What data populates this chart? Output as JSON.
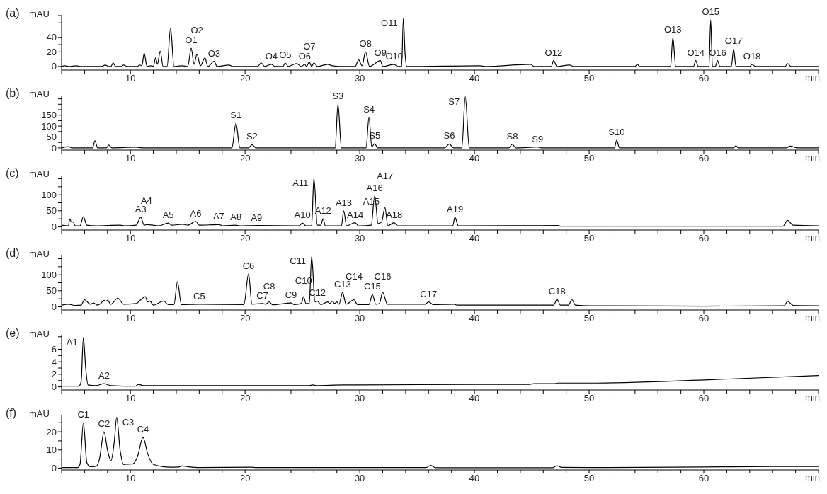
{
  "chart_data": [
    {
      "type": "line",
      "title": "(a)",
      "ylabel": "mAU",
      "xlabel": "min",
      "xlim": [
        4,
        70
      ],
      "ylim": [
        -5,
        70
      ],
      "xticks": [
        {
          "value": 4,
          "label": null
        },
        {
          "value": 6,
          "label": null
        },
        {
          "value": 8,
          "label": null
        },
        10,
        {
          "value": 12,
          "label": null
        },
        {
          "value": 14,
          "label": null
        },
        {
          "value": 16,
          "label": null
        },
        {
          "value": 18,
          "label": null
        },
        20,
        {
          "value": 22,
          "label": null
        },
        {
          "value": 24,
          "label": null
        },
        {
          "value": 26,
          "label": null
        },
        {
          "value": 28,
          "label": null
        },
        30,
        {
          "value": 32,
          "label": null
        },
        {
          "value": 34,
          "label": null
        },
        {
          "value": 36,
          "label": null
        },
        {
          "value": 38,
          "label": null
        },
        40,
        {
          "value": 42,
          "label": null
        },
        {
          "value": 44,
          "label": null
        },
        {
          "value": 46,
          "label": null
        },
        {
          "value": 48,
          "label": null
        },
        50,
        {
          "value": 52,
          "label": null
        },
        {
          "value": 54,
          "label": null
        },
        {
          "value": 56,
          "label": null
        },
        {
          "value": 58,
          "label": null
        },
        60,
        {
          "value": 62,
          "label": null
        },
        {
          "value": 64,
          "label": null
        },
        {
          "value": 66,
          "label": null
        },
        {
          "value": 68,
          "label": null
        },
        {
          "value": 70,
          "label": null
        }
      ],
      "yticks": [
        0,
        {
          "value": 10,
          "label": null
        },
        20,
        {
          "value": 30,
          "label": null
        },
        40,
        {
          "value": 50,
          "label": null
        },
        {
          "value": 60,
          "label": null
        },
        {
          "value": 70,
          "label": null
        }
      ],
      "x": [
        4,
        4.3,
        4.6,
        5.3,
        5.6,
        7.5,
        7.8,
        8.1,
        8.3,
        8.5,
        8.7,
        9.2,
        9.4,
        9.7,
        10.6,
        10.8,
        11.0,
        11.2,
        11.45,
        11.8,
        12.0,
        12.2,
        12.35,
        12.6,
        12.85,
        13.2,
        13.5,
        13.8,
        14.5,
        15.0,
        15.3,
        15.55,
        15.8,
        16.1,
        16.5,
        16.75,
        17.3,
        17.55,
        18.6,
        18.9,
        21.1,
        21.4,
        21.7,
        22.3,
        22.6,
        23.3,
        23.5,
        23.75,
        24.5,
        24.9,
        25.2,
        25.35,
        25.6,
        25.8,
        26.0,
        26.3,
        27.2,
        27.6,
        28.3,
        29.6,
        29.9,
        30.2,
        30.5,
        30.85,
        31.8,
        32.0,
        33.0,
        33.3,
        33.65,
        33.8,
        33.95,
        34.1,
        40.5,
        40.9,
        44.9,
        45.2,
        46.7,
        46.9,
        47.2,
        48.3,
        48.6,
        54.0,
        54.2,
        54.4,
        57.1,
        57.3,
        57.55,
        59.1,
        59.3,
        59.5,
        60.45,
        60.6,
        60.75,
        61.0,
        61.2,
        61.4,
        62.4,
        62.6,
        62.8,
        64.0,
        64.2,
        64.5,
        67.1,
        67.3,
        67.6,
        70
      ],
      "series": [
        {
          "color": "#000000",
          "values": [
            0,
            1,
            0,
            1,
            0,
            0,
            2,
            0,
            0,
            5,
            0,
            0,
            2,
            0,
            0,
            2,
            1,
            18,
            0,
            1,
            0,
            12,
            3,
            21,
            0,
            0,
            53,
            0,
            1,
            0,
            25,
            3,
            17,
            1,
            12,
            0,
            7,
            0,
            2,
            0,
            0,
            5,
            0,
            3,
            0,
            0,
            5,
            0,
            4,
            0,
            3,
            0,
            6,
            0,
            5,
            0,
            3,
            1,
            0,
            0,
            9,
            1,
            20,
            0,
            8,
            0,
            3,
            0,
            0,
            66,
            18,
            0,
            1,
            0,
            3,
            0,
            0,
            8,
            0,
            2,
            0,
            0,
            3,
            0,
            0,
            40,
            0,
            0,
            8,
            0,
            0,
            64,
            0,
            0,
            8,
            0,
            0,
            24,
            0,
            0,
            3,
            0,
            0,
            4,
            0,
            0
          ]
        }
      ],
      "annotations": [
        {
          "text": "O1",
          "x": 15.3,
          "y": 25
        },
        {
          "text": "O2",
          "x": 15.8,
          "y": 17
        },
        {
          "text": "O3",
          "x": 17.3,
          "y": 7
        },
        {
          "text": "O4",
          "x": 22.3,
          "y": 3
        },
        {
          "text": "O5",
          "x": 23.5,
          "y": 5
        },
        {
          "text": "O6",
          "x": 25.2,
          "y": 3
        },
        {
          "text": "O7",
          "x": 25.6,
          "y": 6
        },
        {
          "text": "O8",
          "x": 30.5,
          "y": 20
        },
        {
          "text": "O9",
          "x": 31.8,
          "y": 8
        },
        {
          "text": "O10",
          "x": 33.0,
          "y": 3
        },
        {
          "text": "O11",
          "x": 33.8,
          "y": 66
        },
        {
          "text": "O12",
          "x": 46.9,
          "y": 8
        },
        {
          "text": "O13",
          "x": 57.3,
          "y": 40
        },
        {
          "text": "O14",
          "x": 59.3,
          "y": 8
        },
        {
          "text": "O15",
          "x": 60.6,
          "y": 64
        },
        {
          "text": "O16",
          "x": 61.2,
          "y": 8
        },
        {
          "text": "O17",
          "x": 62.6,
          "y": 24
        },
        {
          "text": "O18",
          "x": 64.2,
          "y": 3
        }
      ]
    },
    {
      "type": "line",
      "title": "(b)",
      "ylabel": "mAU",
      "xlabel": "min",
      "xlim": [
        4,
        70
      ],
      "ylim": [
        -10,
        240
      ],
      "xticks": [
        {
          "value": 4,
          "label": null
        },
        {
          "value": 6,
          "label": null
        },
        {
          "value": 8,
          "label": null
        },
        10,
        {
          "value": 12,
          "label": null
        },
        {
          "value": 14,
          "label": null
        },
        {
          "value": 16,
          "label": null
        },
        {
          "value": 18,
          "label": null
        },
        20,
        {
          "value": 22,
          "label": null
        },
        {
          "value": 24,
          "label": null
        },
        {
          "value": 26,
          "label": null
        },
        {
          "value": 28,
          "label": null
        },
        30,
        {
          "value": 32,
          "label": null
        },
        {
          "value": 34,
          "label": null
        },
        {
          "value": 36,
          "label": null
        },
        {
          "value": 38,
          "label": null
        },
        40,
        {
          "value": 42,
          "label": null
        },
        {
          "value": 44,
          "label": null
        },
        {
          "value": 46,
          "label": null
        },
        {
          "value": 48,
          "label": null
        },
        50,
        {
          "value": 52,
          "label": null
        },
        {
          "value": 54,
          "label": null
        },
        {
          "value": 56,
          "label": null
        },
        {
          "value": 58,
          "label": null
        },
        60,
        {
          "value": 62,
          "label": null
        },
        {
          "value": 64,
          "label": null
        },
        {
          "value": 66,
          "label": null
        },
        {
          "value": 68,
          "label": null
        },
        {
          "value": 70,
          "label": null
        }
      ],
      "yticks": [
        0,
        {
          "value": 25,
          "label": null
        },
        50,
        {
          "value": 75,
          "label": null
        },
        100,
        {
          "value": 125,
          "label": null
        },
        150,
        {
          "value": 175,
          "label": null
        },
        {
          "value": 200,
          "label": null
        },
        {
          "value": 225,
          "label": null
        }
      ],
      "x": [
        4,
        4.6,
        4.9,
        6.7,
        6.9,
        7.15,
        7.9,
        8.1,
        8.4,
        10.5,
        11,
        18.85,
        19.2,
        19.55,
        20.3,
        20.6,
        20.95,
        27.85,
        28.1,
        28.4,
        30.55,
        30.8,
        31.05,
        31.3,
        31.55,
        37.4,
        37.8,
        38.2,
        38.9,
        39.2,
        39.55,
        43.0,
        43.3,
        43.6,
        45.5,
        45.8,
        52.2,
        52.4,
        52.65,
        62.6,
        62.8,
        63.0,
        67.2,
        67.5,
        68.2,
        70
      ],
      "series": [
        {
          "color": "#000000",
          "values": [
            0,
            6,
            0,
            0,
            33,
            0,
            0,
            13,
            0,
            3,
            0,
            0,
            112,
            0,
            0,
            15,
            0,
            0,
            200,
            0,
            0,
            140,
            5,
            20,
            0,
            0,
            18,
            0,
            0,
            235,
            0,
            0,
            17,
            0,
            4,
            0,
            0,
            35,
            0,
            0,
            10,
            0,
            0,
            8,
            0,
            0
          ]
        }
      ],
      "annotations": [
        {
          "text": "S1",
          "x": 19.2,
          "y": 112
        },
        {
          "text": "S2",
          "x": 20.6,
          "y": 15
        },
        {
          "text": "S3",
          "x": 28.1,
          "y": 200
        },
        {
          "text": "S4",
          "x": 30.8,
          "y": 140
        },
        {
          "text": "S5",
          "x": 31.3,
          "y": 20
        },
        {
          "text": "S6",
          "x": 37.8,
          "y": 18
        },
        {
          "text": "S7",
          "x": 39.2,
          "y": 235
        },
        {
          "text": "S8",
          "x": 43.3,
          "y": 17
        },
        {
          "text": "S9",
          "x": 45.5,
          "y": 4
        },
        {
          "text": "S10",
          "x": 52.4,
          "y": 35
        }
      ]
    },
    {
      "type": "line",
      "title": "(c)",
      "ylabel": "mAU",
      "xlabel": "min",
      "xlim": [
        4,
        70
      ],
      "ylim": [
        -10,
        160
      ],
      "xticks": [
        {
          "value": 4,
          "label": null
        },
        {
          "value": 6,
          "label": null
        },
        {
          "value": 8,
          "label": null
        },
        10,
        {
          "value": 12,
          "label": null
        },
        {
          "value": 14,
          "label": null
        },
        {
          "value": 16,
          "label": null
        },
        {
          "value": 18,
          "label": null
        },
        20,
        {
          "value": 22,
          "label": null
        },
        {
          "value": 24,
          "label": null
        },
        {
          "value": 26,
          "label": null
        },
        {
          "value": 28,
          "label": null
        },
        30,
        {
          "value": 32,
          "label": null
        },
        {
          "value": 34,
          "label": null
        },
        {
          "value": 36,
          "label": null
        },
        {
          "value": 38,
          "label": null
        },
        40,
        {
          "value": 42,
          "label": null
        },
        {
          "value": 44,
          "label": null
        },
        {
          "value": 46,
          "label": null
        },
        {
          "value": 48,
          "label": null
        },
        50,
        {
          "value": 52,
          "label": null
        },
        {
          "value": 54,
          "label": null
        },
        {
          "value": 56,
          "label": null
        },
        {
          "value": 58,
          "label": null
        },
        60,
        {
          "value": 62,
          "label": null
        },
        {
          "value": 64,
          "label": null
        },
        {
          "value": 66,
          "label": null
        },
        {
          "value": 68,
          "label": null
        },
        {
          "value": 70,
          "label": null
        }
      ],
      "yticks": [
        0,
        {
          "value": 25,
          "label": null
        },
        50,
        {
          "value": 75,
          "label": null
        },
        100,
        {
          "value": 125,
          "label": null
        },
        {
          "value": 150,
          "label": null
        }
      ],
      "x": [
        4,
        4.6,
        4.7,
        4.85,
        5.0,
        5.2,
        5.6,
        5.9,
        6.2,
        7,
        9.1,
        9.5,
        10.5,
        10.9,
        11.2,
        11.4,
        12.5,
        13.3,
        13.6,
        14.6,
        15.0,
        15.7,
        16.0,
        17.7,
        18.1,
        19.2,
        19.5,
        21.0,
        24.7,
        25.0,
        25.3,
        25.8,
        26.0,
        26.3,
        26.6,
        26.8,
        27.0,
        28.4,
        28.6,
        28.85,
        29.6,
        29.9,
        31.0,
        31.3,
        31.6,
        31.9,
        32.2,
        32.45,
        33.0,
        33.3,
        38.1,
        38.3,
        38.6,
        47.3,
        47.5,
        66.9,
        67.3,
        67.8,
        70
      ],
      "series": [
        {
          "color": "#000000",
          "values": [
            5,
            3,
            25,
            15,
            15,
            3,
            3,
            32,
            5,
            3,
            5,
            3,
            5,
            30,
            5,
            7,
            3,
            12,
            5,
            8,
            5,
            17,
            5,
            7,
            3,
            5,
            3,
            4,
            3,
            12,
            3,
            3,
            152,
            5,
            5,
            25,
            3,
            3,
            50,
            3,
            13,
            3,
            5,
            97,
            10,
            15,
            60,
            3,
            13,
            3,
            3,
            30,
            3,
            4,
            2,
            2,
            20,
            5,
            3
          ]
        }
      ],
      "annotations": [
        {
          "text": "A3",
          "x": 10.9,
          "y": 30
        },
        {
          "text": "A4",
          "x": 11.4,
          "y": 7
        },
        {
          "text": "A5",
          "x": 13.3,
          "y": 12
        },
        {
          "text": "A6",
          "x": 15.7,
          "y": 17
        },
        {
          "text": "A7",
          "x": 17.7,
          "y": 7
        },
        {
          "text": "A8",
          "x": 19.2,
          "y": 5
        },
        {
          "text": "A9",
          "x": 21.0,
          "y": 4
        },
        {
          "text": "A10",
          "x": 25.0,
          "y": 12
        },
        {
          "text": "A11",
          "x": 26.0,
          "y": 152
        },
        {
          "text": "A12",
          "x": 26.8,
          "y": 25
        },
        {
          "text": "A13",
          "x": 28.6,
          "y": 50
        },
        {
          "text": "A14",
          "x": 29.6,
          "y": 13
        },
        {
          "text": "A15",
          "x": 31.0,
          "y": 5
        },
        {
          "text": "A16",
          "x": 31.3,
          "y": 97
        },
        {
          "text": "A17",
          "x": 32.2,
          "y": 60
        },
        {
          "text": "A18",
          "x": 33.0,
          "y": 13
        },
        {
          "text": "A19",
          "x": 38.3,
          "y": 30
        }
      ]
    },
    {
      "type": "line",
      "title": "(d)",
      "ylabel": "mAU",
      "xlabel": "min",
      "xlim": [
        4,
        70
      ],
      "ylim": [
        -10,
        160
      ],
      "xticks": [
        {
          "value": 4,
          "label": null
        },
        {
          "value": 6,
          "label": null
        },
        {
          "value": 8,
          "label": null
        },
        10,
        {
          "value": 12,
          "label": null
        },
        {
          "value": 14,
          "label": null
        },
        {
          "value": 16,
          "label": null
        },
        {
          "value": 18,
          "label": null
        },
        20,
        {
          "value": 22,
          "label": null
        },
        {
          "value": 24,
          "label": null
        },
        {
          "value": 26,
          "label": null
        },
        {
          "value": 28,
          "label": null
        },
        30,
        {
          "value": 32,
          "label": null
        },
        {
          "value": 34,
          "label": null
        },
        {
          "value": 36,
          "label": null
        },
        {
          "value": 38,
          "label": null
        },
        40,
        {
          "value": 42,
          "label": null
        },
        {
          "value": 44,
          "label": null
        },
        {
          "value": 46,
          "label": null
        },
        {
          "value": 48,
          "label": null
        },
        50,
        {
          "value": 52,
          "label": null
        },
        {
          "value": 54,
          "label": null
        },
        {
          "value": 56,
          "label": null
        },
        {
          "value": 58,
          "label": null
        },
        60,
        {
          "value": 62,
          "label": null
        },
        {
          "value": 64,
          "label": null
        },
        {
          "value": 66,
          "label": null
        },
        {
          "value": 68,
          "label": null
        },
        {
          "value": 70,
          "label": null
        }
      ],
      "yticks": [
        0,
        {
          "value": 25,
          "label": null
        },
        50,
        {
          "value": 75,
          "label": null
        },
        100,
        {
          "value": 125,
          "label": null
        },
        {
          "value": 150,
          "label": null
        }
      ],
      "x": [
        4,
        4.6,
        5.2,
        5.7,
        6.0,
        6.5,
        6.8,
        7.1,
        7.4,
        7.7,
        7.85,
        8.0,
        8.3,
        8.9,
        9.4,
        10.5,
        10.9,
        11.3,
        11.5,
        11.7,
        12.0,
        12.9,
        13.3,
        13.8,
        14.1,
        14.45,
        16.0,
        19.9,
        20.3,
        20.6,
        21.5,
        21.8,
        22.1,
        22.4,
        24.0,
        24.3,
        24.9,
        25.1,
        25.3,
        25.6,
        25.8,
        26.1,
        26.3,
        26.6,
        27.2,
        27.4,
        27.6,
        27.8,
        28.0,
        28.2,
        28.5,
        28.8,
        29.5,
        29.8,
        30.8,
        31.1,
        31.4,
        31.7,
        32.0,
        32.4,
        35.7,
        36.0,
        36.4,
        38.2,
        38.5,
        46.9,
        47.2,
        47.5,
        48.2,
        48.5,
        48.8,
        50,
        52,
        60,
        67.0,
        67.3,
        67.8,
        70
      ],
      "series": [
        {
          "color": "#000000",
          "values": [
            5,
            8,
            4,
            5,
            22,
            8,
            12,
            5,
            10,
            20,
            17,
            20,
            8,
            27,
            8,
            10,
            22,
            32,
            15,
            18,
            5,
            18,
            7,
            7,
            78,
            7,
            8,
            7,
            103,
            8,
            10,
            8,
            15,
            6,
            12,
            7,
            10,
            32,
            10,
            10,
            157,
            15,
            18,
            7,
            15,
            10,
            18,
            10,
            15,
            8,
            45,
            8,
            22,
            7,
            7,
            38,
            8,
            10,
            45,
            8,
            8,
            15,
            7,
            8,
            5,
            5,
            23,
            5,
            5,
            22,
            5,
            3,
            3,
            2,
            3,
            17,
            4,
            3
          ]
        }
      ],
      "annotations": [
        {
          "text": "C5",
          "x": 16.0,
          "y": 8
        },
        {
          "text": "C6",
          "x": 20.3,
          "y": 103
        },
        {
          "text": "C7",
          "x": 21.5,
          "y": 10
        },
        {
          "text": "C8",
          "x": 22.1,
          "y": 15
        },
        {
          "text": "C9",
          "x": 24.0,
          "y": 12
        },
        {
          "text": "C10",
          "x": 25.1,
          "y": 32
        },
        {
          "text": "C11",
          "x": 25.8,
          "y": 157
        },
        {
          "text": "C12",
          "x": 26.3,
          "y": 18
        },
        {
          "text": "C13",
          "x": 28.5,
          "y": 45
        },
        {
          "text": "C14",
          "x": 29.5,
          "y": 22
        },
        {
          "text": "C15",
          "x": 31.1,
          "y": 38
        },
        {
          "text": "C16",
          "x": 32.0,
          "y": 45
        },
        {
          "text": "C17",
          "x": 36.0,
          "y": 15
        },
        {
          "text": "C18",
          "x": 47.2,
          "y": 23
        }
      ]
    },
    {
      "type": "line",
      "title": "(e)",
      "ylabel": "mAU",
      "xlabel": "min",
      "xlim": [
        4,
        70
      ],
      "ylim": [
        -0.5,
        8.2
      ],
      "xticks": [
        {
          "value": 4,
          "label": null
        },
        {
          "value": 6,
          "label": null
        },
        {
          "value": 8,
          "label": null
        },
        10,
        {
          "value": 12,
          "label": null
        },
        {
          "value": 14,
          "label": null
        },
        {
          "value": 16,
          "label": null
        },
        {
          "value": 18,
          "label": null
        },
        20,
        {
          "value": 22,
          "label": null
        },
        {
          "value": 24,
          "label": null
        },
        {
          "value": 26,
          "label": null
        },
        {
          "value": 28,
          "label": null
        },
        30,
        {
          "value": 32,
          "label": null
        },
        {
          "value": 34,
          "label": null
        },
        {
          "value": 36,
          "label": null
        },
        {
          "value": 38,
          "label": null
        },
        40,
        {
          "value": 42,
          "label": null
        },
        {
          "value": 44,
          "label": null
        },
        {
          "value": 46,
          "label": null
        },
        {
          "value": 48,
          "label": null
        },
        50,
        {
          "value": 52,
          "label": null
        },
        {
          "value": 54,
          "label": null
        },
        {
          "value": 56,
          "label": null
        },
        {
          "value": 58,
          "label": null
        },
        60,
        {
          "value": 62,
          "label": null
        },
        {
          "value": 64,
          "label": null
        },
        {
          "value": 66,
          "label": null
        },
        {
          "value": 68,
          "label": null
        },
        {
          "value": 70,
          "label": null
        }
      ],
      "yticks": [
        0,
        {
          "value": 1,
          "label": null
        },
        2,
        {
          "value": 3,
          "label": null
        },
        4,
        {
          "value": 5,
          "label": null
        },
        6,
        {
          "value": 7,
          "label": null
        },
        {
          "value": 8,
          "label": null
        }
      ],
      "x": [
        4,
        5.5,
        5.7,
        5.9,
        6.1,
        6.3,
        7.0,
        7.7,
        8.3,
        10.4,
        10.7,
        11.1,
        25.6,
        25.9,
        26.2,
        28.6,
        30,
        40,
        44.8,
        45.2,
        47,
        47.2,
        50,
        60,
        70
      ],
      "series": [
        {
          "color": "#000000",
          "values": [
            0.1,
            0.1,
            0.8,
            7.9,
            3,
            0.3,
            0.2,
            0.5,
            0.2,
            0.1,
            0.4,
            0.2,
            0.2,
            0.3,
            0.2,
            0.3,
            0.3,
            0.4,
            0.4,
            0.5,
            0.5,
            0.6,
            0.6,
            1.1,
            1.8
          ]
        }
      ],
      "annotations": [
        {
          "text": "A1",
          "x": 5.9,
          "y": 7.9
        },
        {
          "text": "A2",
          "x": 7.7,
          "y": 0.5
        }
      ]
    },
    {
      "type": "line",
      "title": "(f)",
      "ylabel": "mAU",
      "xlabel": "min",
      "xlim": [
        4,
        70
      ],
      "ylim": [
        -1,
        29
      ],
      "xticks": [
        {
          "value": 4,
          "label": null
        },
        {
          "value": 6,
          "label": null
        },
        {
          "value": 8,
          "label": null
        },
        10,
        {
          "value": 12,
          "label": null
        },
        {
          "value": 14,
          "label": null
        },
        {
          "value": 16,
          "label": null
        },
        {
          "value": 18,
          "label": null
        },
        20,
        {
          "value": 22,
          "label": null
        },
        {
          "value": 24,
          "label": null
        },
        {
          "value": 26,
          "label": null
        },
        {
          "value": 28,
          "label": null
        },
        30,
        {
          "value": 32,
          "label": null
        },
        {
          "value": 34,
          "label": null
        },
        {
          "value": 36,
          "label": null
        },
        {
          "value": 38,
          "label": null
        },
        40,
        {
          "value": 42,
          "label": null
        },
        {
          "value": 44,
          "label": null
        },
        {
          "value": 46,
          "label": null
        },
        {
          "value": 48,
          "label": null
        },
        50,
        {
          "value": 52,
          "label": null
        },
        {
          "value": 54,
          "label": null
        },
        {
          "value": 56,
          "label": null
        },
        {
          "value": 58,
          "label": null
        },
        60,
        {
          "value": 62,
          "label": null
        },
        {
          "value": 64,
          "label": null
        },
        {
          "value": 66,
          "label": null
        },
        {
          "value": 68,
          "label": null
        },
        {
          "value": 70,
          "label": null
        }
      ],
      "yticks": [
        0,
        {
          "value": 5,
          "label": null
        },
        10,
        {
          "value": 15,
          "label": null
        },
        20,
        {
          "value": 25,
          "label": null
        }
      ],
      "x": [
        4,
        5.4,
        5.6,
        5.9,
        6.2,
        6.5,
        7.0,
        7.3,
        7.7,
        8.0,
        8.3,
        8.6,
        8.8,
        9.1,
        9.4,
        9.8,
        10.2,
        10.6,
        11.1,
        11.5,
        12.0,
        13.5,
        14.2,
        14.5,
        15,
        16,
        20.5,
        21,
        35.8,
        36.2,
        36.6,
        46.8,
        47.2,
        47.6,
        50,
        60,
        66,
        70
      ],
      "series": [
        {
          "color": "#000000",
          "values": [
            0.3,
            0.3,
            2,
            25,
            3,
            0.8,
            1,
            5,
            20,
            10,
            4,
            15,
            28,
            10,
            2,
            2.2,
            2.3,
            6,
            17,
            8,
            2,
            0.5,
            0.6,
            1.2,
            0.8,
            0.3,
            0.5,
            0.3,
            0.3,
            1.5,
            0.2,
            0.2,
            1.3,
            0.4,
            0.3,
            0.6,
            0.9,
            0.9
          ]
        }
      ],
      "annotations": [
        {
          "text": "C1",
          "x": 5.9,
          "y": 25
        },
        {
          "text": "C2",
          "x": 7.7,
          "y": 20
        },
        {
          "text": "C3",
          "x": 8.8,
          "y": 28
        },
        {
          "text": "C4",
          "x": 11.1,
          "y": 17
        }
      ]
    }
  ]
}
